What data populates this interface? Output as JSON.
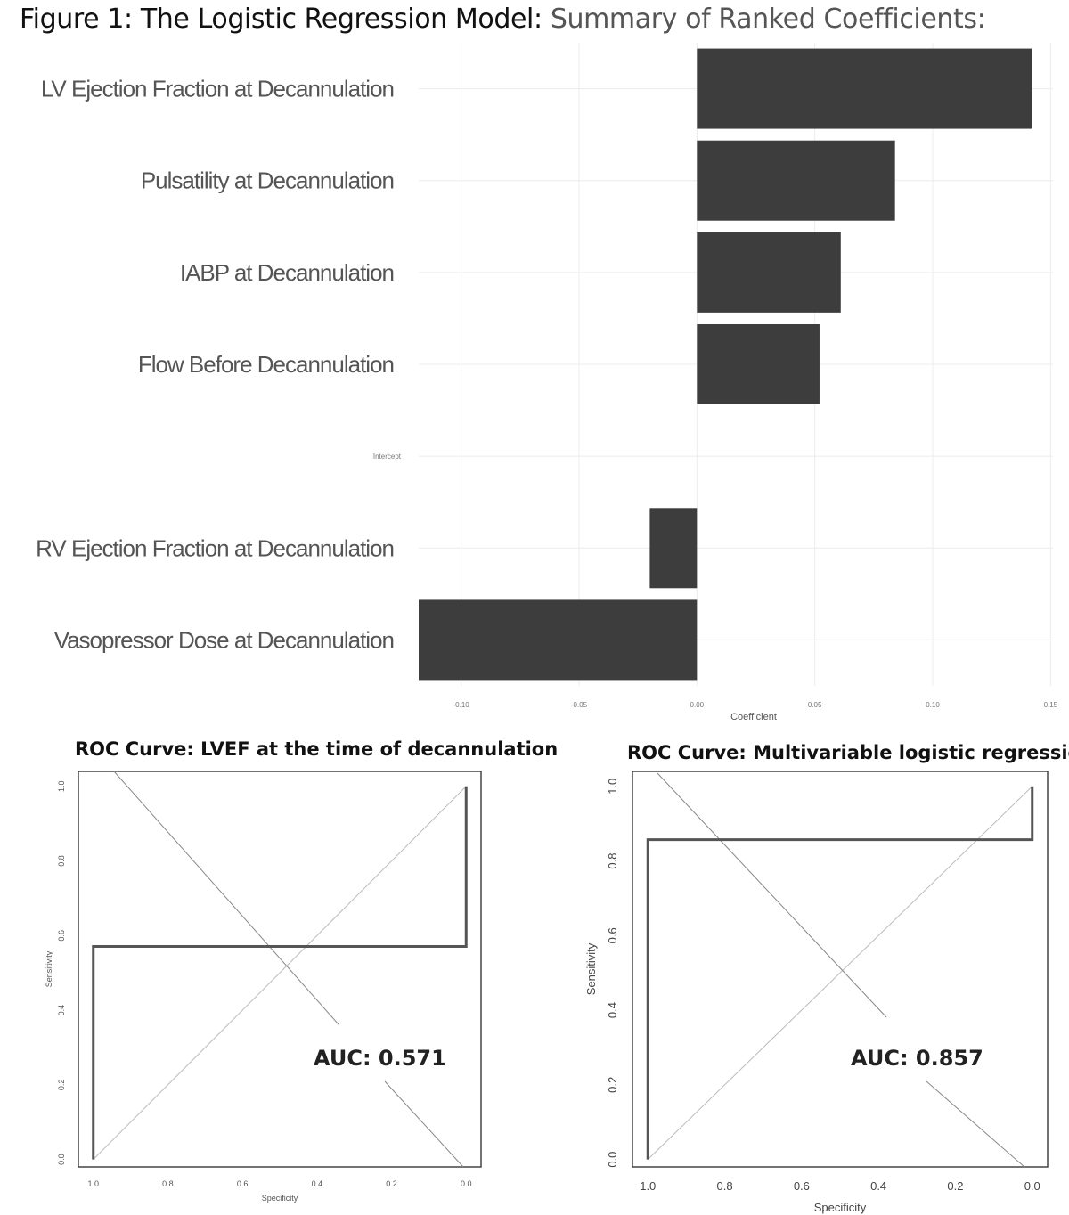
{
  "figure_title": {
    "bold": "Figure 1: The Logistic Regression Model:",
    "light": "Summary of Ranked Coefficients:"
  },
  "chart_data": [
    {
      "type": "bar",
      "orientation": "horizontal",
      "categories": [
        "LV Ejection Fraction at Decannulation",
        "Pulsatility at Decannulation",
        "IABP at Decannulation",
        "Flow Before Decannulation",
        "Intercept",
        "RV Ejection Fraction at Decannulation",
        "Vasopressor Dose at Decannulation"
      ],
      "values": [
        0.142,
        0.084,
        0.061,
        0.052,
        0.0,
        -0.02,
        -0.118
      ],
      "xlabel": "Coefficient",
      "xlim": [
        -0.118,
        0.151
      ],
      "xticks": [
        -0.1,
        -0.05,
        0.0,
        0.05,
        0.1,
        0.15
      ],
      "xtick_labels": [
        "-0.10",
        "-0.05",
        "0.00",
        "0.05",
        "0.10",
        "0.15"
      ],
      "grid": true,
      "bar_color": "#3d3d3d"
    },
    {
      "type": "line",
      "title": "ROC Curve: LVEF at the time of decannulation",
      "xlabel": "Specificity",
      "ylabel": "Sensitivity",
      "x_reversed": true,
      "xlim": [
        1.04,
        -0.04
      ],
      "ylim": [
        -0.02,
        1.04
      ],
      "xticks": [
        1.0,
        0.8,
        0.6,
        0.4,
        0.2,
        0.0
      ],
      "xtick_labels": [
        "1.0",
        "0.8",
        "0.6",
        "0.4",
        "0.2",
        "0.0"
      ],
      "yticks": [
        0.0,
        0.2,
        0.4,
        0.6,
        0.8,
        1.0
      ],
      "ytick_labels": [
        "0.0",
        "0.2",
        "0.4",
        "0.6",
        "0.8",
        "1.0"
      ],
      "series": [
        {
          "x": [
            1.0,
            1.0,
            0.0,
            0.0
          ],
          "y": [
            0.0,
            0.571,
            0.571,
            1.0
          ]
        }
      ],
      "auc_label": "AUC: 0.571"
    },
    {
      "type": "line",
      "title": "ROC Curve: Multivariable logistic regression",
      "xlabel": "Specificity",
      "ylabel": "Sensitivity",
      "x_reversed": true,
      "xlim": [
        1.04,
        -0.04
      ],
      "ylim": [
        -0.02,
        1.04
      ],
      "xticks": [
        1.0,
        0.8,
        0.6,
        0.4,
        0.2,
        0.0
      ],
      "xtick_labels": [
        "1.0",
        "0.8",
        "0.6",
        "0.4",
        "0.2",
        "0.0"
      ],
      "yticks": [
        0.0,
        0.2,
        0.4,
        0.6,
        0.8,
        1.0
      ],
      "ytick_labels": [
        "0.0",
        "0.2",
        "0.4",
        "0.6",
        "0.8",
        "1.0"
      ],
      "series": [
        {
          "x": [
            1.0,
            1.0,
            0.0,
            0.0
          ],
          "y": [
            0.0,
            0.857,
            0.857,
            1.0
          ]
        }
      ],
      "auc_label": "AUC: 0.857"
    }
  ]
}
